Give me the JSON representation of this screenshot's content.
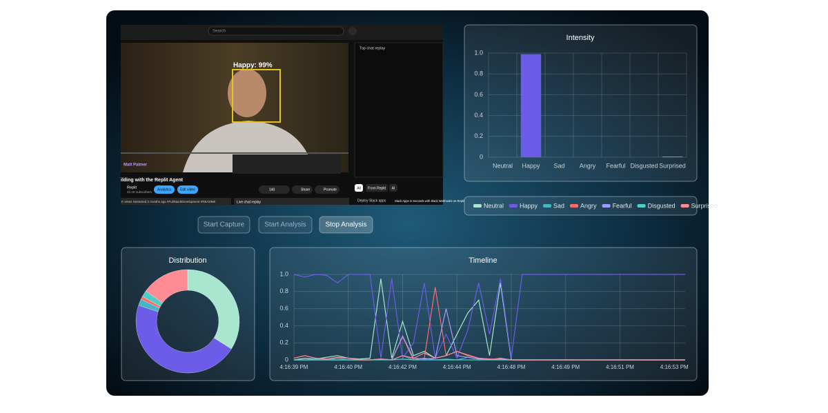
{
  "video": {
    "search": "Search",
    "detection": "Happy: 99%",
    "chat_header": "Top chat replay",
    "overlay_name": "Matt Palmer",
    "title": "ilding with the Replit Agent",
    "channel": "Replit",
    "subscribers": "42.1K subscribers",
    "buttons": [
      "Analytics",
      "Edit video"
    ],
    "likes": "140",
    "actions": [
      "Share",
      "Promote"
    ],
    "chips": [
      "All",
      "From Replit",
      "AI"
    ],
    "description": "K views  Streamed 2 months ago  #FullStackDevelopment #README",
    "live_chat": "Live chat replay",
    "related_tag": "Deploy Slack apps",
    "related_title": "Slack Apps in Seconds with Slack Webhooks on Replit"
  },
  "controls": [
    "Start Capture",
    "Start Analysis",
    "Stop Analysis"
  ],
  "chart_data": [
    {
      "type": "bar",
      "title": "Intensity",
      "categories": [
        "Neutral",
        "Happy",
        "Sad",
        "Angry",
        "Fearful",
        "Disgusted",
        "Surprised"
      ],
      "values": [
        0,
        0.99,
        0,
        0,
        0,
        0,
        0.005
      ],
      "colors": [
        "#a8e6cf",
        "#6c5ce7",
        "#48b5c4",
        "#ff6b6b",
        "#a29bfe",
        "#4ecdc4",
        "#ff8b94"
      ],
      "ylim": [
        0,
        1
      ],
      "yticks": [
        0,
        0.2,
        0.4,
        0.6,
        0.8,
        {
          "value": 1,
          "label": "1.0"
        }
      ],
      "grid": true
    },
    {
      "type": "pie",
      "title": "Distribution",
      "values": [
        34,
        46,
        2,
        1,
        0,
        2,
        15
      ],
      "colors": [
        "#a8e6cf",
        "#6c5ce7",
        "#48b5c4",
        "#ff6b6b",
        "#a29bfe",
        "#4ecdc4",
        "#ff8b94"
      ]
    },
    {
      "type": "line",
      "title": "Timeline",
      "x": [
        "4:16:39 PM",
        null,
        null,
        null,
        null,
        "4:16:40 PM",
        null,
        null,
        null,
        null,
        "4:16:42 PM",
        null,
        null,
        null,
        null,
        "4:16:44 PM",
        null,
        null,
        null,
        null,
        "4:16:48 PM",
        null,
        null,
        null,
        null,
        "4:16:49 PM",
        null,
        null,
        null,
        null,
        "4:16:51 PM",
        null,
        null,
        null,
        null,
        "4:16:53 PM",
        null
      ],
      "ylim": [
        0,
        1
      ],
      "yticks": [
        0,
        0.2,
        0.4,
        0.6,
        0.8,
        {
          "value": 1,
          "label": "1.0"
        }
      ],
      "grid": true,
      "series": [
        {
          "name": "Neutral",
          "color": "#a8e6cf",
          "values": [
            0,
            0.02,
            0.01,
            0.03,
            0.05,
            0.02,
            0.01,
            0.02,
            0.95,
            0.02,
            0.45,
            0.05,
            0.1,
            0.02,
            0.05,
            0.3,
            0.55,
            0.7,
            0.05,
            0.9,
            0,
            0,
            0,
            0,
            0,
            0,
            0,
            0,
            0,
            0,
            0,
            0,
            0,
            0,
            0,
            0,
            0
          ]
        },
        {
          "name": "Happy",
          "color": "#6c5ce7",
          "values": [
            1,
            0.97,
            1,
            0.99,
            0.9,
            1,
            1,
            1,
            0.02,
            0.95,
            0.02,
            0.2,
            0.9,
            0.02,
            0.3,
            0.02,
            0.35,
            0.9,
            0.3,
            0.95,
            0.02,
            1,
            1,
            1,
            1,
            1,
            1,
            1,
            1,
            1,
            1,
            1,
            1,
            1,
            1,
            1,
            1
          ]
        },
        {
          "name": "Sad",
          "color": "#48b5c4",
          "values": [
            0,
            0,
            0.01,
            0,
            0.02,
            0,
            0,
            0,
            0.01,
            0,
            0.05,
            0,
            0.02,
            0,
            0.01,
            0,
            0.03,
            0.01,
            0,
            0.02,
            0,
            0,
            0,
            0,
            0,
            0,
            0,
            0,
            0,
            0,
            0,
            0,
            0,
            0,
            0,
            0,
            0
          ]
        },
        {
          "name": "Angry",
          "color": "#ff6b6b",
          "values": [
            0,
            0,
            0,
            0,
            0,
            0,
            0,
            0,
            0.01,
            0,
            0.27,
            0,
            0.02,
            0.85,
            0.05,
            0.1,
            0.06,
            0.02,
            0.01,
            0,
            0,
            0,
            0,
            0,
            0,
            0,
            0,
            0,
            0,
            0,
            0,
            0,
            0,
            0,
            0,
            0,
            0
          ]
        },
        {
          "name": "Fearful",
          "color": "#a29bfe",
          "values": [
            0,
            0,
            0,
            0,
            0,
            0,
            0,
            0,
            0.01,
            0,
            0.28,
            0.02,
            0.01,
            0.02,
            0.6,
            0.05,
            0.03,
            0.01,
            0,
            0.02,
            0,
            0,
            0,
            0,
            0,
            0,
            0,
            0,
            0,
            0,
            0,
            0,
            0,
            0,
            0,
            0,
            0
          ]
        },
        {
          "name": "Disgusted",
          "color": "#4ecdc4",
          "values": [
            0,
            0,
            0,
            0,
            0,
            0,
            0,
            0,
            0,
            0,
            0.01,
            0,
            0,
            0,
            0,
            0,
            0,
            0,
            0,
            0,
            0,
            0,
            0,
            0,
            0,
            0,
            0,
            0,
            0,
            0,
            0,
            0,
            0,
            0,
            0,
            0,
            0
          ]
        },
        {
          "name": "Surprised",
          "color": "#ff8b94",
          "values": [
            0.02,
            0.05,
            0.02,
            0.01,
            0.03,
            0.02,
            0,
            0,
            0.01,
            0,
            0.05,
            0.02,
            0.08,
            0.02,
            0.05,
            0.1,
            0.05,
            0.02,
            0.01,
            0.01,
            0,
            0,
            0,
            0,
            0,
            0,
            0,
            0,
            0,
            0,
            0,
            0,
            0,
            0,
            0,
            0,
            0
          ]
        }
      ]
    }
  ]
}
